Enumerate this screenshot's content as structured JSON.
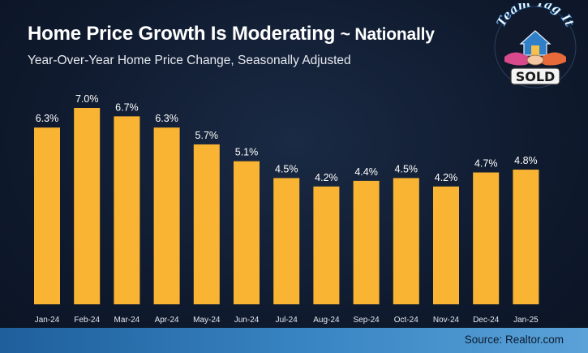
{
  "header": {
    "title": "Home Price Growth Is Moderating",
    "title_suffix": "~ Nationally",
    "subtitle": "Year-Over-Year Home Price Change, Seasonally Adjusted"
  },
  "logo": {
    "top_text": "Team Tag It",
    "bottom_text": "SOLD",
    "icon": "handshake-house-icon"
  },
  "footer": {
    "source": "Source: Realtor.com"
  },
  "colors": {
    "bar": "#f8b432",
    "background": "#0f1a2e",
    "footer": "#3a86c4"
  },
  "chart_data": {
    "type": "bar",
    "title": "Home Price Growth Is Moderating ~ Nationally",
    "subtitle": "Year-Over-Year Home Price Change, Seasonally Adjusted",
    "categories": [
      "Jan-24",
      "Feb-24",
      "Mar-24",
      "Apr-24",
      "May-24",
      "Jun-24",
      "Jul-24",
      "Aug-24",
      "Sep-24",
      "Oct-24",
      "Nov-24",
      "Dec-24",
      "Jan-25"
    ],
    "values": [
      6.3,
      7.0,
      6.7,
      6.3,
      5.7,
      5.1,
      4.5,
      4.2,
      4.4,
      4.5,
      4.2,
      4.7,
      4.8
    ],
    "value_labels": [
      "6.3%",
      "7.0%",
      "6.7%",
      "6.3%",
      "5.7%",
      "5.1%",
      "4.5%",
      "4.2%",
      "4.4%",
      "4.5%",
      "4.2%",
      "4.7%",
      "4.8%"
    ],
    "xlabel": "",
    "ylabel": "",
    "ylim": [
      0,
      7.0
    ],
    "grid": false,
    "legend": "none"
  }
}
